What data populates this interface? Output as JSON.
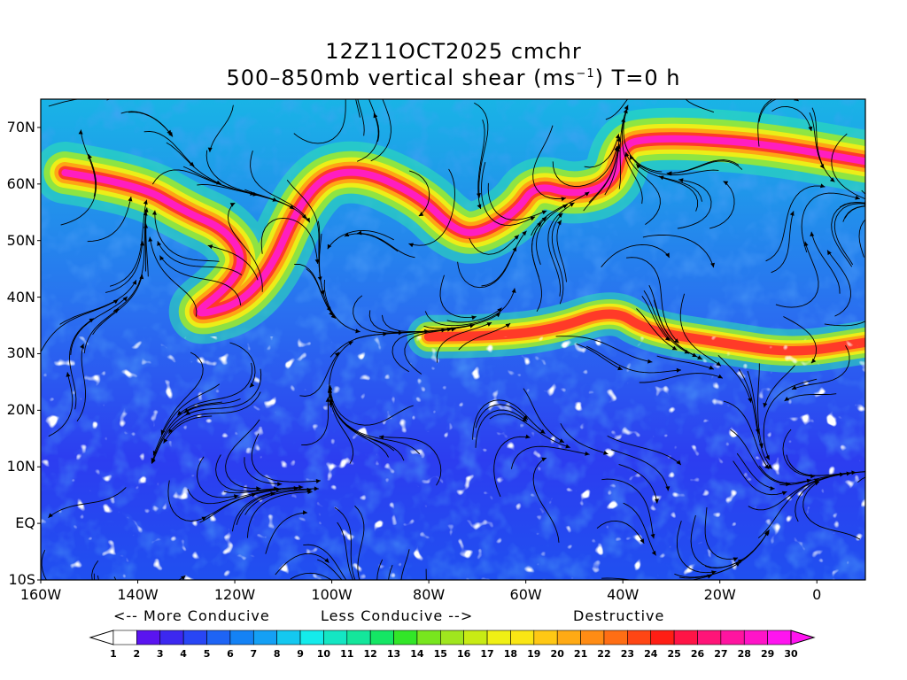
{
  "title": {
    "line1": "12Z11OCT2025 cmchr",
    "line2_pre": "500–850mb vertical shear (ms",
    "line2_sup": "−1",
    "line2_post": ") T=0 h"
  },
  "map": {
    "lon_range": [
      -160,
      10
    ],
    "lat_range": [
      -10,
      75
    ],
    "lat_labels": [
      "70N",
      "60N",
      "50N",
      "40N",
      "30N",
      "20N",
      "10N",
      "EQ",
      "10S"
    ],
    "lat_values": [
      70,
      60,
      50,
      40,
      30,
      20,
      10,
      0,
      -10
    ],
    "lon_labels": [
      "160W",
      "140W",
      "120W",
      "100W",
      "80W",
      "60W",
      "40W",
      "20W",
      "0"
    ],
    "lon_values": [
      -160,
      -140,
      -120,
      -100,
      -80,
      -60,
      -40,
      -20,
      0
    ],
    "jet_stream_path": [
      [
        -155,
        62
      ],
      [
        -140,
        60
      ],
      [
        -130,
        55
      ],
      [
        -122,
        52
      ],
      [
        -118,
        47
      ],
      [
        -121,
        42
      ],
      [
        -130,
        36
      ],
      [
        -115,
        40
      ],
      [
        -105,
        60
      ],
      [
        -95,
        63
      ],
      [
        -82,
        58
      ],
      [
        -75,
        52
      ],
      [
        -70,
        51
      ],
      [
        -62,
        55
      ],
      [
        -58,
        60
      ],
      [
        -50,
        58
      ],
      [
        -42,
        60
      ],
      [
        -40,
        67
      ],
      [
        -35,
        68
      ],
      [
        -25,
        68
      ],
      [
        -10,
        67
      ],
      [
        10,
        64
      ]
    ],
    "subtropical_jet_path": [
      [
        -80,
        33
      ],
      [
        -70,
        33
      ],
      [
        -55,
        34
      ],
      [
        -42,
        38
      ],
      [
        -35,
        34
      ],
      [
        -20,
        32
      ],
      [
        -5,
        30
      ],
      [
        10,
        32
      ]
    ]
  },
  "legend": {
    "more_conducive": "<-- More Conducive",
    "less_conducive": "Less Conducive -->",
    "destructive": "Destructive"
  },
  "colorbar": {
    "labels": [
      "1",
      "2",
      "3",
      "4",
      "5",
      "6",
      "7",
      "8",
      "9",
      "10",
      "11",
      "12",
      "13",
      "14",
      "15",
      "16",
      "17",
      "18",
      "19",
      "20",
      "21",
      "22",
      "23",
      "24",
      "25",
      "26",
      "27",
      "28",
      "29",
      "30"
    ],
    "colors": [
      "#ffffff",
      "#5a14f0",
      "#3c28f0",
      "#2846f5",
      "#1e64f5",
      "#1482f5",
      "#14a0f5",
      "#14c8f0",
      "#14ebeb",
      "#14e6c3",
      "#14e69b",
      "#14e664",
      "#32e628",
      "#78e61e",
      "#a0e61e",
      "#c8eb14",
      "#f0f014",
      "#fae614",
      "#ffc814",
      "#ffaa14",
      "#ff8c14",
      "#ff6e14",
      "#ff4614",
      "#ff1e14",
      "#ff1446",
      "#ff1478",
      "#ff14a0",
      "#ff14c8",
      "#ff14f0"
    ]
  }
}
